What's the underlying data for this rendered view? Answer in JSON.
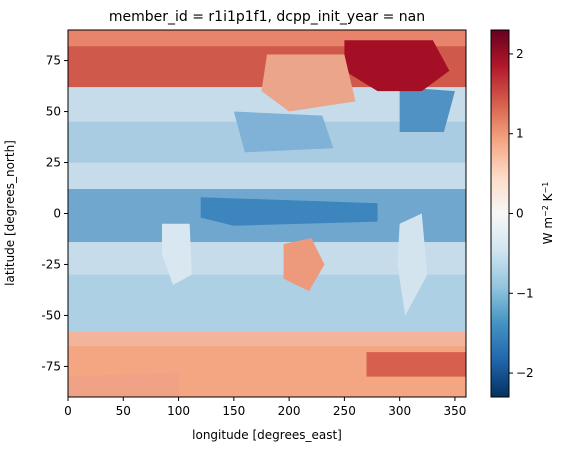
{
  "chart_data": {
    "type": "heatmap",
    "title": "member_id = r1i1p1f1, dcpp_init_year = nan",
    "xlabel": "longitude [degrees_east]",
    "ylabel": "latitude [degrees_north]",
    "xlim": [
      0,
      360
    ],
    "ylim": [
      -90,
      90
    ],
    "x_ticks": [
      0,
      50,
      100,
      150,
      200,
      250,
      300,
      350
    ],
    "y_ticks": [
      -75,
      -50,
      -25,
      0,
      25,
      50,
      75
    ],
    "colorbar": {
      "label_base": "W m",
      "label_exp1": "−2",
      "label_mid": " K",
      "label_exp2": "−1",
      "colormap": "RdBu_r",
      "vmin": -2.3,
      "vmax": 2.3,
      "ticks": [
        -2,
        -1,
        0,
        1,
        2
      ],
      "tick_labels": [
        "−2",
        "−1",
        "0",
        "1",
        "2"
      ]
    },
    "field_description": "Global map: strong positive values (red) over Arctic and Siberia/northeast Asia, moderate positive over Antarctica and land masses (Australia, southern Africa, western Americas); negative values (blue) across equatorial Pacific/Atlantic/Indian oceans and Southern Ocean, strongest along equatorial Pacific and North Pacific",
    "grid": false,
    "colors": {
      "cmap_low": "#053061",
      "cmap_mid": "#f7f7f7",
      "cmap_high": "#67001f"
    }
  }
}
